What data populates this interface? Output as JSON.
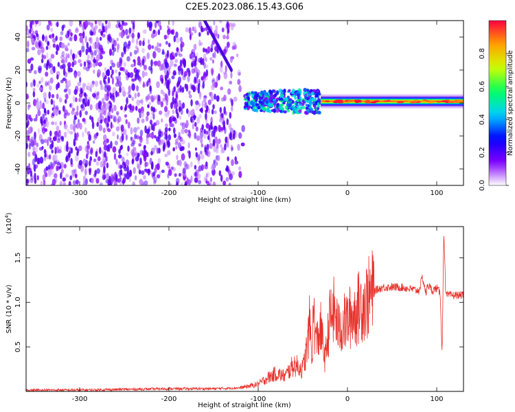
{
  "title": "C2E5.2023.086.15.43.G06",
  "chart_data": [
    {
      "type": "heatmap",
      "name": "spectrogram",
      "xlabel": "Height of straight line (km)",
      "ylabel": "Frequency (Hz)",
      "xlim": [
        -360,
        130
      ],
      "ylim": [
        -50,
        50
      ],
      "xticks": [
        -300,
        -200,
        -100,
        0,
        100
      ],
      "xtick_labels": [
        "-300",
        "-200",
        "-100",
        "0",
        "100"
      ],
      "yticks": [
        -40,
        -20,
        0,
        20,
        40
      ],
      "ytick_labels": [
        "-40",
        "-20",
        "0",
        "20",
        "40"
      ],
      "colorbar": {
        "label": "Normalized spectral amplitude",
        "range": [
          0.0,
          1.0
        ],
        "ticks": [
          0.0,
          0.2,
          0.4,
          0.6,
          0.8
        ],
        "tick_labels": [
          "0.0",
          "0.2",
          "0.4",
          "0.6",
          "0.8"
        ],
        "colormap": [
          "#ffffff",
          "#8000ff",
          "#0000ff",
          "#00d0ff",
          "#00ff60",
          "#d0ff00",
          "#ffa000",
          "#ff0040"
        ]
      },
      "regions": [
        {
          "description": "broadband noise",
          "x": [
            -360,
            -115
          ],
          "y": [
            -50,
            50
          ],
          "amplitude": 0.15
        },
        {
          "description": "diagonal streak",
          "x": [
            -160,
            -130
          ],
          "y": [
            50,
            20
          ],
          "amplitude": 0.3
        },
        {
          "description": "transition band",
          "x": [
            -115,
            -30
          ],
          "y": [
            -10,
            10
          ],
          "amplitude": 0.5
        },
        {
          "description": "narrow tone",
          "x": [
            -30,
            130
          ],
          "y": [
            -1,
            3
          ],
          "amplitude": 0.95
        }
      ]
    },
    {
      "type": "line",
      "name": "snr",
      "xlabel": "Height of straight line (km)",
      "ylabel": "SNR (10 * v/v)",
      "ymultiplier": "(x10",
      "ymultiplier_exp": "4",
      "xlim": [
        -360,
        130
      ],
      "ylim": [
        0,
        18500
      ],
      "xticks": [
        -300,
        -200,
        -100,
        0,
        100
      ],
      "xtick_labels": [
        "-300",
        "-200",
        "-100",
        "0",
        "100"
      ],
      "yticks": [
        5000,
        10000,
        15000
      ],
      "ytick_labels": [
        "0.5",
        "1.0",
        "1.5"
      ],
      "color": "#e8302a",
      "series": [
        {
          "x": [
            -360,
            -300,
            -200,
            -150,
            -120,
            -100,
            -90,
            -80,
            -70,
            -60,
            -50,
            -45,
            -42,
            -40,
            -38,
            -35,
            -30,
            -25,
            -20,
            -15,
            -10,
            -5,
            0,
            5,
            10,
            15,
            20,
            25,
            30,
            40,
            50,
            60,
            70,
            80,
            84,
            88,
            90,
            95,
            100,
            104,
            106,
            108,
            110,
            120,
            130
          ],
          "y": [
            150,
            150,
            300,
            300,
            400,
            800,
            1500,
            2000,
            1700,
            3000,
            2500,
            5000,
            8000,
            3500,
            9000,
            5500,
            7000,
            3500,
            8000,
            9000,
            7000,
            7500,
            8000,
            8500,
            9000,
            9800,
            10000,
            10700,
            11300,
            11700,
            11700,
            11700,
            11500,
            11300,
            12800,
            11000,
            12000,
            11300,
            11600,
            11000,
            4000,
            18500,
            10800,
            10800,
            10800
          ]
        }
      ]
    }
  ]
}
